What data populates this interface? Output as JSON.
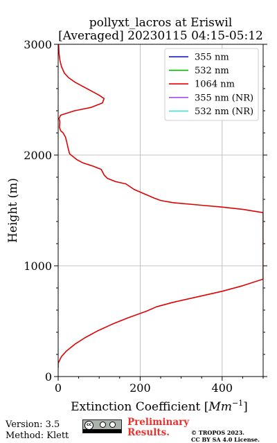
{
  "chart_data": {
    "type": "line",
    "title_line1": "pollyxt_lacros at Eriswil",
    "title_line2": "[Averaged] 20230115 04:15-05:12",
    "xlabel": "Extinction Coefficient [",
    "xlabel_unit": "Mm",
    "xlabel_exp": "−1",
    "xlabel_end": "]",
    "ylabel": "Height (m)",
    "xlim": [
      0,
      500
    ],
    "ylim": [
      0,
      3000
    ],
    "x_ticks": [
      0,
      200,
      400
    ],
    "x_tick_labels": [
      "0",
      "200",
      "400"
    ],
    "y_ticks": [
      0,
      1000,
      2000,
      3000
    ],
    "y_tick_labels": [
      "0",
      "1000",
      "2000",
      "3000"
    ],
    "grid": true,
    "legend_position": "top-right",
    "series": [
      {
        "name": "355 nm",
        "color": "#0000ff",
        "points": []
      },
      {
        "name": "532 nm",
        "color": "#00b400",
        "points": []
      },
      {
        "name": "1064 nm",
        "color": "#e00000",
        "points": [
          [
            0,
            80
          ],
          [
            0,
            120
          ],
          [
            8,
            180
          ],
          [
            20,
            230
          ],
          [
            40,
            290
          ],
          [
            65,
            350
          ],
          [
            95,
            410
          ],
          [
            130,
            470
          ],
          [
            170,
            530
          ],
          [
            215,
            590
          ],
          [
            240,
            630
          ],
          [
            280,
            670
          ],
          [
            340,
            720
          ],
          [
            400,
            770
          ],
          [
            450,
            820
          ],
          [
            500,
            880
          ],
          [
            500,
            1480
          ],
          [
            450,
            1510
          ],
          [
            400,
            1530
          ],
          [
            340,
            1550
          ],
          [
            280,
            1570
          ],
          [
            250,
            1590
          ],
          [
            235,
            1610
          ],
          [
            210,
            1650
          ],
          [
            185,
            1690
          ],
          [
            165,
            1740
          ],
          [
            140,
            1760
          ],
          [
            120,
            1790
          ],
          [
            112,
            1820
          ],
          [
            105,
            1870
          ],
          [
            85,
            1900
          ],
          [
            60,
            1930
          ],
          [
            45,
            1960
          ],
          [
            35,
            1990
          ],
          [
            28,
            2010
          ],
          [
            25,
            2050
          ],
          [
            22,
            2100
          ],
          [
            18,
            2160
          ],
          [
            12,
            2200
          ],
          [
            6,
            2220
          ],
          [
            3,
            2250
          ],
          [
            4,
            2300
          ],
          [
            2,
            2330
          ],
          [
            6,
            2360
          ],
          [
            40,
            2400
          ],
          [
            80,
            2430
          ],
          [
            108,
            2470
          ],
          [
            112,
            2510
          ],
          [
            100,
            2540
          ],
          [
            80,
            2580
          ],
          [
            60,
            2620
          ],
          [
            40,
            2660
          ],
          [
            25,
            2700
          ],
          [
            15,
            2740
          ],
          [
            8,
            2800
          ],
          [
            4,
            2860
          ],
          [
            2,
            2920
          ],
          [
            1,
            3000
          ]
        ]
      },
      {
        "name": "355 nm (NR)",
        "color": "#a050f0",
        "points": []
      },
      {
        "name": "532 nm (NR)",
        "color": "#40e0d0",
        "points": []
      }
    ]
  },
  "footer": {
    "version": "Version: 3.5",
    "method": "Method: Klett",
    "preliminary_line1": "Preliminary",
    "preliminary_line2": "Results.",
    "copyright_line1": "© TROPOS 2023.",
    "copyright_line2": "CC BY SA 4.0 License.",
    "badge_text": "cc"
  }
}
